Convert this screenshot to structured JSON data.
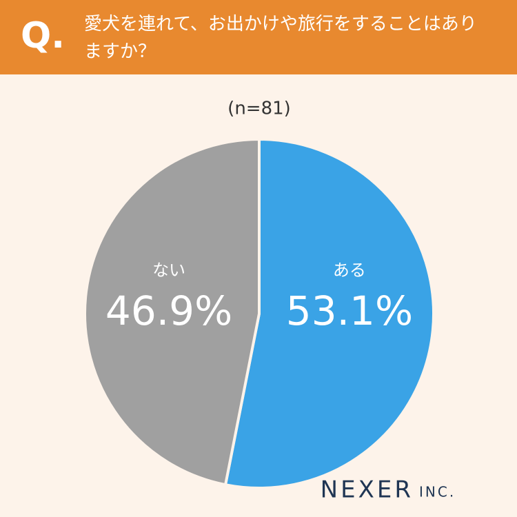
{
  "header": {
    "q": "Q."
  },
  "chart_data": {
    "type": "pie",
    "title": "愛犬を連れて、お出かけや旅行をすることはありますか？",
    "subtitle": "(n=81)",
    "categories": [
      "ある",
      "ない"
    ],
    "values": [
      53.1,
      46.9
    ],
    "value_labels": [
      "53.1%",
      "46.9%"
    ],
    "colors": [
      "#3aa3e6",
      "#a0a0a0"
    ]
  },
  "logo": {
    "name": "NEXER",
    "suffix": "INC."
  }
}
